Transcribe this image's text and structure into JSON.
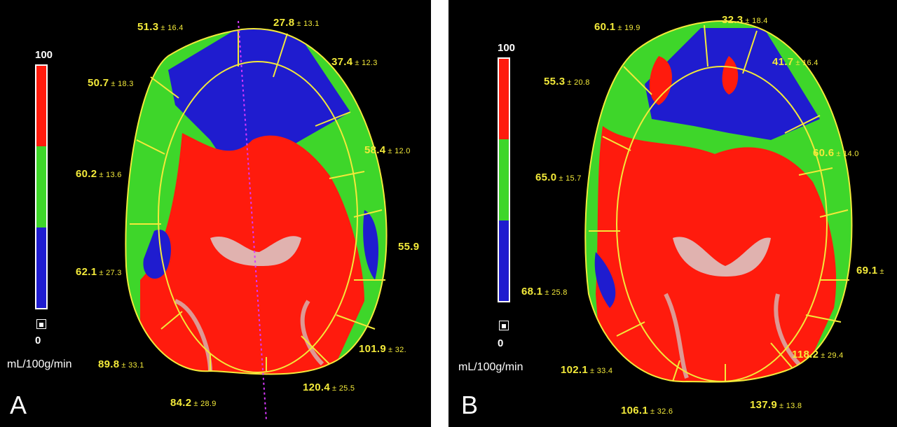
{
  "colors": {
    "high": "#ff1b0d",
    "mid": "#3ed62a",
    "low": "#1f1ccf",
    "roi_outline": "#f3e93a",
    "label_text": "#f3ea3a",
    "midline": "#d838ff"
  },
  "panels": [
    {
      "letter": "A",
      "scale": {
        "max": "100",
        "min": "0",
        "unit": "mL/100g/min"
      },
      "regions": [
        {
          "mean": "51.3",
          "sd": "± 16.4"
        },
        {
          "mean": "27.8",
          "sd": "± 13.1"
        },
        {
          "mean": "37.4",
          "sd": "± 12.3"
        },
        {
          "mean": "50.7",
          "sd": "± 18.3"
        },
        {
          "mean": "58.4",
          "sd": "± 12.0"
        },
        {
          "mean": "60.2",
          "sd": "± 13.6"
        },
        {
          "mean": "55.9",
          "sd": ""
        },
        {
          "mean": "62.1",
          "sd": "± 27.3"
        },
        {
          "mean": "101.9",
          "sd": "± 32."
        },
        {
          "mean": "89.8",
          "sd": "± 33.1"
        },
        {
          "mean": "120.4",
          "sd": "± 25.5"
        },
        {
          "mean": "84.2",
          "sd": "± 28.9"
        }
      ]
    },
    {
      "letter": "B",
      "scale": {
        "max": "100",
        "min": "0",
        "unit": "mL/100g/min"
      },
      "regions": [
        {
          "mean": "60.1",
          "sd": "± 19.9"
        },
        {
          "mean": "32.3",
          "sd": "± 18.4"
        },
        {
          "mean": "41.7",
          "sd": "± 16.4"
        },
        {
          "mean": "55.3",
          "sd": "± 20.8"
        },
        {
          "mean": "60.6",
          "sd": "± 14.0"
        },
        {
          "mean": "65.0",
          "sd": "± 15.7"
        },
        {
          "mean": "69.1",
          "sd": "±"
        },
        {
          "mean": "68.1",
          "sd": "± 25.8"
        },
        {
          "mean": "118.2",
          "sd": "± 29.4"
        },
        {
          "mean": "102.1",
          "sd": "± 33.4"
        },
        {
          "mean": "137.9",
          "sd": "± 13.8"
        },
        {
          "mean": "106.1",
          "sd": "± 32.6"
        }
      ]
    }
  ]
}
